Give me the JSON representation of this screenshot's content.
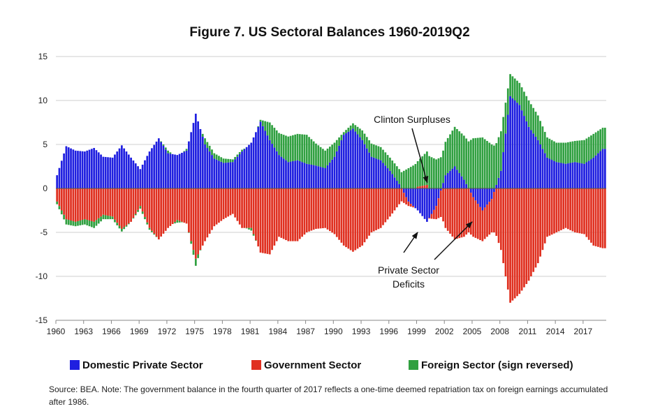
{
  "chart_data": {
    "type": "bar",
    "stacked": true,
    "title": "Figure 7. US Sectoral Balances 1960-2019Q2",
    "ylim": [
      -15,
      15
    ],
    "yticks": [
      15,
      10,
      5,
      0,
      -5,
      -10,
      -15
    ],
    "xlim": [
      1960,
      2019.5
    ],
    "xticks": [
      "1960",
      "1963",
      "1966",
      "1969",
      "1972",
      "1975",
      "1978",
      "1981",
      "1984",
      "1987",
      "1990",
      "1993",
      "1996",
      "1999",
      "2002",
      "2005",
      "2008",
      "2011",
      "2014",
      "2017"
    ],
    "legend_position": "bottom",
    "grid": "horizontal",
    "series": [
      {
        "name": "Domestic Private Sector",
        "color": "#1f1fe0",
        "points": [
          [
            1960,
            1.5
          ],
          [
            1961,
            4.8
          ],
          [
            1962,
            4.3
          ],
          [
            1963,
            4.2
          ],
          [
            1964,
            4.6
          ],
          [
            1965,
            3.6
          ],
          [
            1966,
            3.5
          ],
          [
            1967,
            4.9
          ],
          [
            1968,
            3.5
          ],
          [
            1969,
            2.2
          ],
          [
            1970,
            4.2
          ],
          [
            1971,
            5.7
          ],
          [
            1972,
            4.0
          ],
          [
            1973,
            3.8
          ],
          [
            1974,
            4.3
          ],
          [
            1975,
            8.5
          ],
          [
            1976,
            5.0
          ],
          [
            1977,
            3.4
          ],
          [
            1978,
            2.9
          ],
          [
            1979,
            3.0
          ],
          [
            1980,
            4.2
          ],
          [
            1981,
            5.2
          ],
          [
            1982,
            7.6
          ],
          [
            1983,
            5.5
          ],
          [
            1984,
            3.8
          ],
          [
            1985,
            3.0
          ],
          [
            1986,
            3.2
          ],
          [
            1987,
            2.8
          ],
          [
            1988,
            2.6
          ],
          [
            1989,
            2.3
          ],
          [
            1990,
            3.6
          ],
          [
            1991,
            6.1
          ],
          [
            1992,
            6.8
          ],
          [
            1993,
            5.5
          ],
          [
            1994,
            3.6
          ],
          [
            1995,
            3.2
          ],
          [
            1996,
            2.0
          ],
          [
            1997,
            0.5
          ],
          [
            1998,
            -1.5
          ],
          [
            1999,
            -2.5
          ],
          [
            2000,
            -3.8
          ],
          [
            2001,
            -2.0
          ],
          [
            2002,
            1.5
          ],
          [
            2003,
            2.5
          ],
          [
            2004,
            1.0
          ],
          [
            2005,
            -1.0
          ],
          [
            2006,
            -2.5
          ],
          [
            2007,
            -1.2
          ],
          [
            2008,
            2.0
          ],
          [
            2009,
            10.5
          ],
          [
            2010,
            9.5
          ],
          [
            2011,
            7.0
          ],
          [
            2012,
            5.5
          ],
          [
            2013,
            3.5
          ],
          [
            2014,
            3.0
          ],
          [
            2015,
            2.8
          ],
          [
            2016,
            3.0
          ],
          [
            2017,
            2.8
          ],
          [
            2018,
            3.5
          ],
          [
            2019,
            4.5
          ]
        ]
      },
      {
        "name": "Government Sector",
        "color": "#e03020",
        "points": [
          [
            1960,
            -1.5
          ],
          [
            1961,
            -3.5
          ],
          [
            1962,
            -3.8
          ],
          [
            1963,
            -3.5
          ],
          [
            1964,
            -3.8
          ],
          [
            1965,
            -3.0
          ],
          [
            1966,
            -3.2
          ],
          [
            1967,
            -4.6
          ],
          [
            1968,
            -3.8
          ],
          [
            1969,
            -2.0
          ],
          [
            1970,
            -4.5
          ],
          [
            1971,
            -5.8
          ],
          [
            1972,
            -4.5
          ],
          [
            1973,
            -3.6
          ],
          [
            1974,
            -4.0
          ],
          [
            1975,
            -8.0
          ],
          [
            1976,
            -6.0
          ],
          [
            1977,
            -4.3
          ],
          [
            1978,
            -3.5
          ],
          [
            1979,
            -2.9
          ],
          [
            1980,
            -4.5
          ],
          [
            1981,
            -4.5
          ],
          [
            1982,
            -7.3
          ],
          [
            1983,
            -7.5
          ],
          [
            1984,
            -5.5
          ],
          [
            1985,
            -6.0
          ],
          [
            1986,
            -6.0
          ],
          [
            1987,
            -5.0
          ],
          [
            1988,
            -4.6
          ],
          [
            1989,
            -4.5
          ],
          [
            1990,
            -5.2
          ],
          [
            1991,
            -6.5
          ],
          [
            1992,
            -7.2
          ],
          [
            1993,
            -6.5
          ],
          [
            1994,
            -5.0
          ],
          [
            1995,
            -4.5
          ],
          [
            1996,
            -3.2
          ],
          [
            1997,
            -1.8
          ],
          [
            1998,
            -0.5
          ],
          [
            1999,
            0.2
          ],
          [
            2000,
            0.4
          ],
          [
            2001,
            -1.5
          ],
          [
            2002,
            -4.5
          ],
          [
            2003,
            -5.8
          ],
          [
            2004,
            -5.5
          ],
          [
            2005,
            -4.5
          ],
          [
            2006,
            -3.5
          ],
          [
            2007,
            -3.8
          ],
          [
            2008,
            -7.0
          ],
          [
            2009,
            -13.0
          ],
          [
            2010,
            -12.0
          ],
          [
            2011,
            -10.5
          ],
          [
            2012,
            -8.5
          ],
          [
            2013,
            -5.5
          ],
          [
            2014,
            -5.0
          ],
          [
            2015,
            -4.5
          ],
          [
            2016,
            -5.0
          ],
          [
            2017,
            -5.2
          ],
          [
            2018,
            -6.5
          ],
          [
            2019,
            -6.8
          ]
        ]
      },
      {
        "name": "Foreign Sector (sign reversed)",
        "color": "#30a040",
        "points": [
          [
            1960,
            -0.3
          ],
          [
            1961,
            -0.6
          ],
          [
            1962,
            -0.5
          ],
          [
            1963,
            -0.6
          ],
          [
            1964,
            -0.7
          ],
          [
            1965,
            -0.5
          ],
          [
            1966,
            -0.3
          ],
          [
            1967,
            -0.3
          ],
          [
            1968,
            0.0
          ],
          [
            1969,
            -0.3
          ],
          [
            1970,
            -0.2
          ],
          [
            1971,
            0.0
          ],
          [
            1972,
            0.3
          ],
          [
            1973,
            -0.3
          ],
          [
            1974,
            0.2
          ],
          [
            1975,
            -0.8
          ],
          [
            1976,
            0.7
          ],
          [
            1977,
            0.6
          ],
          [
            1978,
            0.5
          ],
          [
            1979,
            0.3
          ],
          [
            1980,
            0.2
          ],
          [
            1981,
            -0.3
          ],
          [
            1982,
            0.2
          ],
          [
            1983,
            2.0
          ],
          [
            1984,
            2.5
          ],
          [
            1985,
            2.9
          ],
          [
            1986,
            3.0
          ],
          [
            1987,
            3.3
          ],
          [
            1988,
            2.5
          ],
          [
            1989,
            2.0
          ],
          [
            1990,
            1.6
          ],
          [
            1991,
            0.3
          ],
          [
            1992,
            0.6
          ],
          [
            1993,
            1.1
          ],
          [
            1994,
            1.5
          ],
          [
            1995,
            1.5
          ],
          [
            1996,
            1.5
          ],
          [
            1997,
            1.7
          ],
          [
            1998,
            2.3
          ],
          [
            1999,
            2.9
          ],
          [
            2000,
            3.8
          ],
          [
            2001,
            3.3
          ],
          [
            2002,
            3.8
          ],
          [
            2003,
            4.5
          ],
          [
            2004,
            5.0
          ],
          [
            2005,
            5.7
          ],
          [
            2006,
            5.8
          ],
          [
            2007,
            5.0
          ],
          [
            2008,
            4.5
          ],
          [
            2009,
            2.5
          ],
          [
            2010,
            2.5
          ],
          [
            2011,
            3.0
          ],
          [
            2012,
            2.8
          ],
          [
            2013,
            2.3
          ],
          [
            2014,
            2.2
          ],
          [
            2015,
            2.4
          ],
          [
            2016,
            2.4
          ],
          [
            2017,
            2.7
          ],
          [
            2018,
            2.7
          ],
          [
            2019,
            2.4
          ]
        ]
      }
    ],
    "annotations": [
      {
        "text": "Clinton Surpluses",
        "x": 2000,
        "y": 0.5
      },
      {
        "lines": [
          "Private Sector",
          "Deficits"
        ],
        "x": 2000,
        "y": -4.5
      }
    ]
  },
  "note_text": "Source: BEA. Note: The government balance in the fourth quarter of 2017 reflects a one-time deemed repatriation tax on foreign earnings accumulated after 1986."
}
